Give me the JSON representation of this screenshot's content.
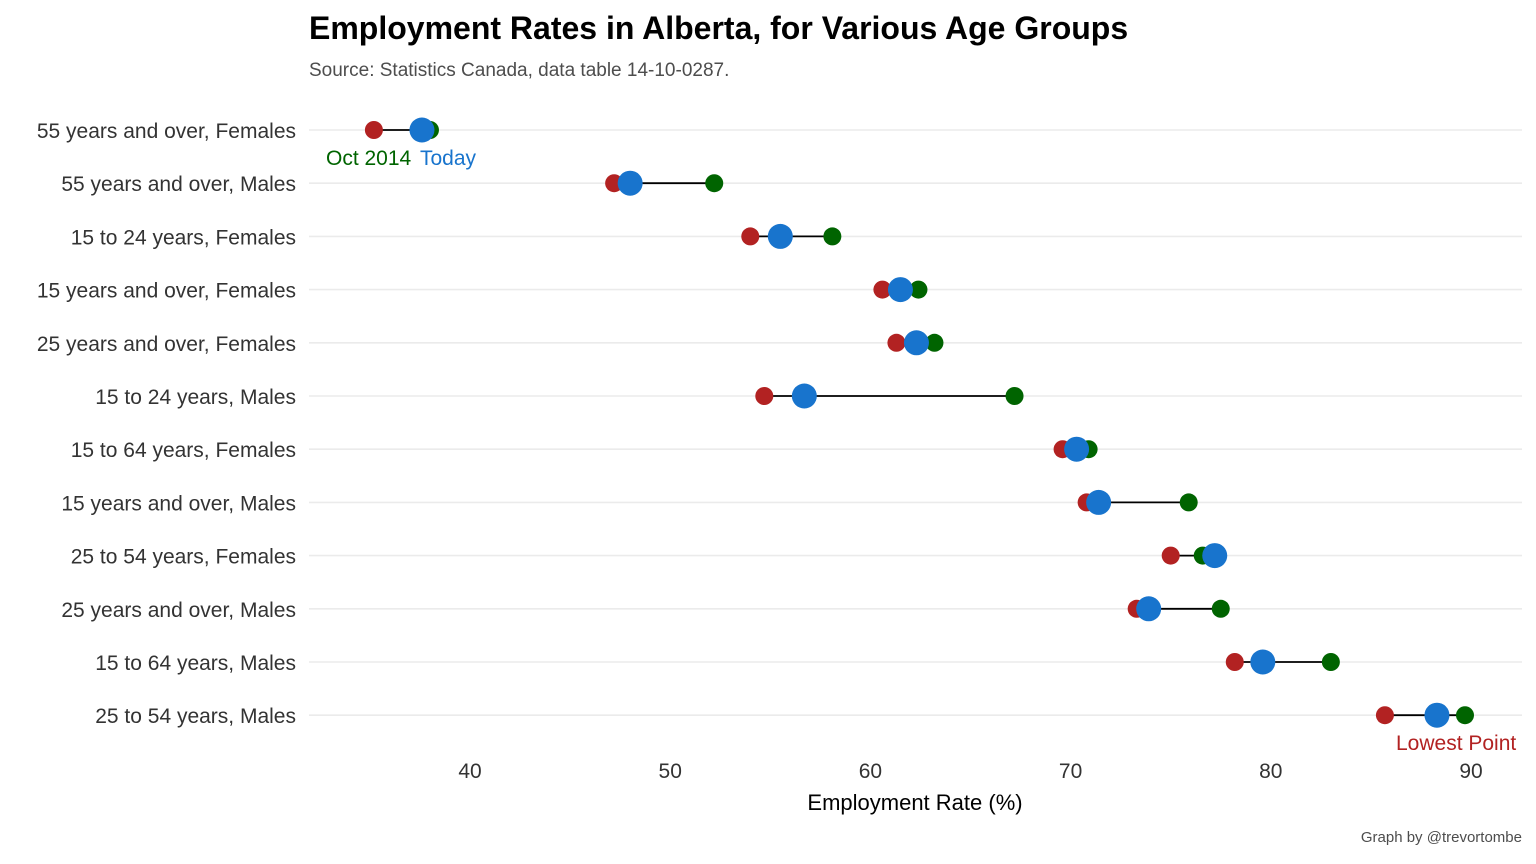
{
  "chart_data": {
    "type": "dot-range",
    "title": "Employment Rates in Alberta, for Various Age Groups",
    "subtitle": "Source: Statistics Canada, data table 14-10-0287.",
    "caption": "Graph by @trevortombe",
    "xlabel": "Employment Rate (%)",
    "xlim": [
      32,
      92.5
    ],
    "xticks": [
      40,
      50,
      60,
      70,
      80,
      90
    ],
    "grid": "horizontal",
    "colors": {
      "oct2014": "#006400",
      "today": "#1874CD",
      "lowest": "#B22222",
      "connector": "#000000"
    },
    "annotations": {
      "oct2014": "Oct 2014",
      "today": "Today",
      "lowest": "Lowest Point"
    },
    "categories": [
      "55 years and over, Females",
      "55 years and over, Males",
      "15 to 24 years, Females",
      "15 years and over, Females",
      "25 years and over, Females",
      "15 to 24 years, Males",
      "15 to 64 years, Females",
      "15 years and over, Males",
      "25 to 54 years, Females",
      "25 years and over, Males",
      "15 to 64 years, Males",
      "25 to 54 years, Males"
    ],
    "series": [
      {
        "name": "Oct 2014",
        "values": [
          38.0,
          52.2,
          58.1,
          62.4,
          63.2,
          67.2,
          70.9,
          75.9,
          76.6,
          77.5,
          83.0,
          89.7
        ]
      },
      {
        "name": "Lowest Point",
        "values": [
          35.2,
          47.2,
          54.0,
          60.6,
          61.3,
          54.7,
          69.6,
          70.8,
          75.0,
          73.3,
          78.2,
          85.7
        ]
      },
      {
        "name": "Today",
        "values": [
          37.6,
          48.0,
          55.5,
          61.5,
          62.3,
          56.7,
          70.3,
          71.4,
          77.2,
          73.9,
          79.6,
          88.3
        ]
      }
    ]
  }
}
